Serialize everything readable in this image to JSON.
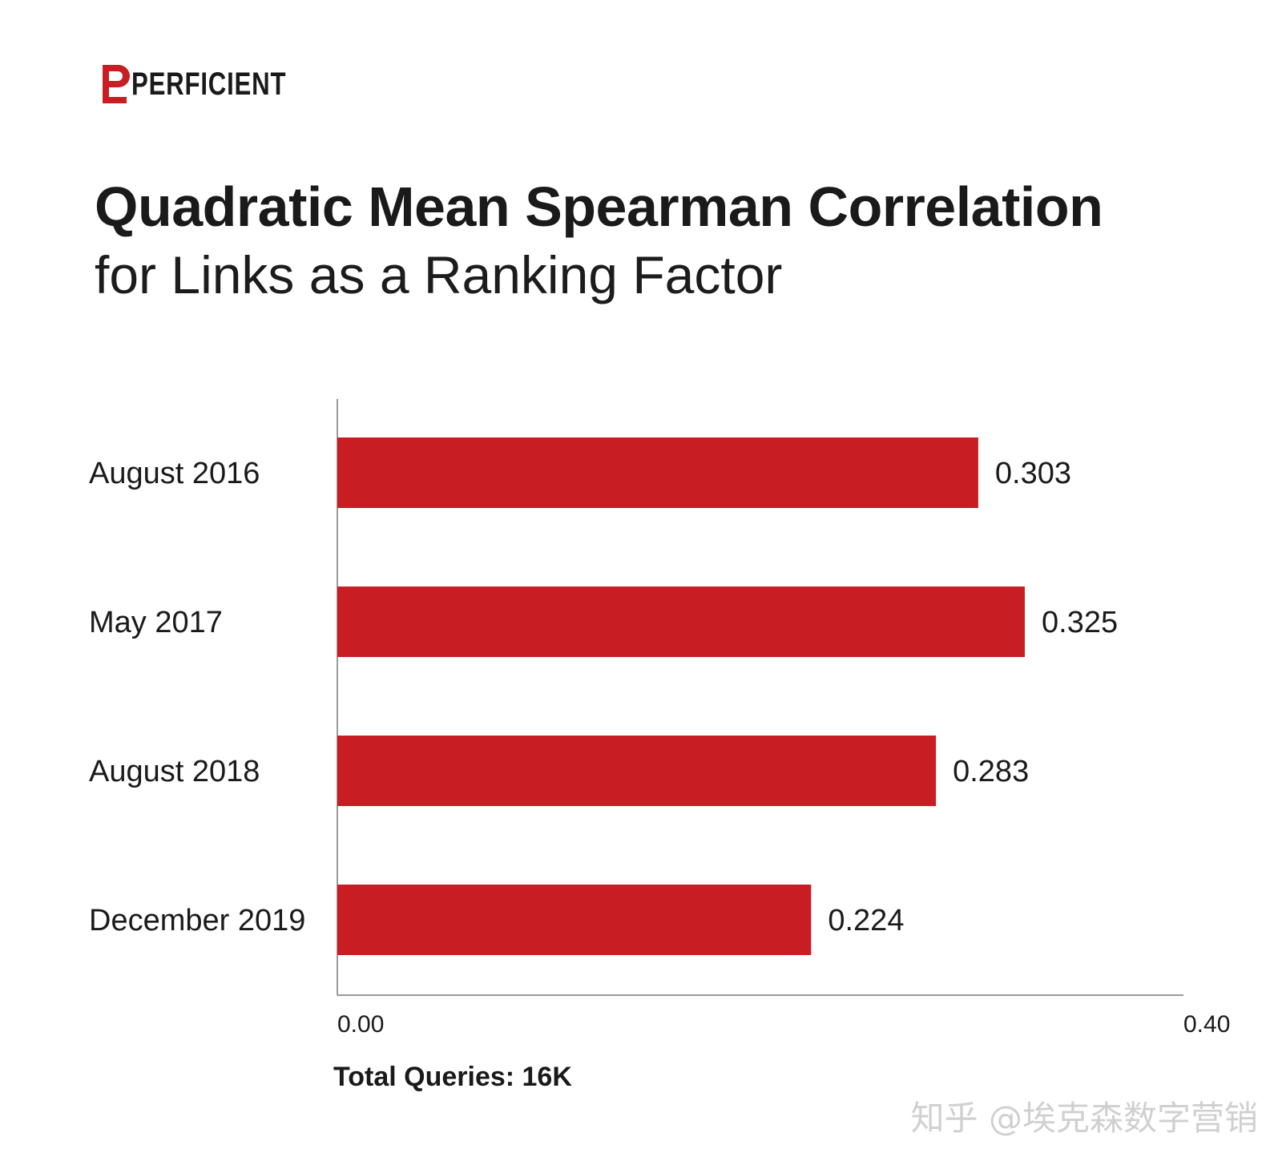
{
  "brand": {
    "logo_text": "PERFICIENT",
    "accent": "#c81e23"
  },
  "watermark": "知乎 @埃克森数字营销",
  "footnote": "Total Queries: 16K",
  "chart_data": {
    "type": "bar",
    "orientation": "horizontal",
    "title": "Quadratic Mean Spearman Correlation",
    "subtitle": "for Links as a Ranking Factor",
    "categories": [
      "August 2016",
      "May 2017",
      "August 2018",
      "December 2019"
    ],
    "values": [
      0.303,
      0.325,
      0.283,
      0.224
    ],
    "value_labels": [
      "0.303",
      "0.325",
      "0.283",
      "0.224"
    ],
    "xlim": [
      0,
      0.4
    ],
    "x_ticks": [
      "0.00",
      "0.40"
    ],
    "grid": false,
    "bar_color": "#c81e23"
  }
}
